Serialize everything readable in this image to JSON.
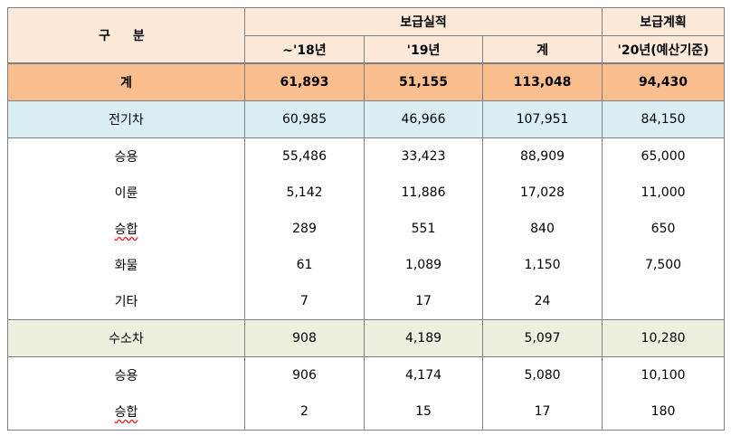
{
  "header": {
    "category": "구 분",
    "actual_group": "보급실적",
    "plan_group": "보급계획",
    "col_until18": "~'18년",
    "col_19": "'19년",
    "col_total": "계",
    "col_20plan": "'20년(예산기준)"
  },
  "rows": [
    {
      "label": "계",
      "v": [
        "61,893",
        "51,155",
        "113,048",
        "94,430"
      ]
    },
    {
      "label": "전기차",
      "v": [
        "60,985",
        "46,966",
        "107,951",
        "84,150"
      ]
    },
    {
      "label": "승용",
      "v": [
        "55,486",
        "33,423",
        "88,909",
        "65,000"
      ]
    },
    {
      "label": "이륜",
      "v": [
        "5,142",
        "11,886",
        "17,028",
        "11,000"
      ]
    },
    {
      "label": "승합",
      "v": [
        "289",
        "551",
        "840",
        "650"
      ]
    },
    {
      "label": "화물",
      "v": [
        "61",
        "1,089",
        "1,150",
        "7,500"
      ]
    },
    {
      "label": "기타",
      "v": [
        "7",
        "17",
        "24",
        ""
      ]
    },
    {
      "label": "수소차",
      "v": [
        "908",
        "4,189",
        "5,097",
        "10,280"
      ]
    },
    {
      "label": "승용",
      "v": [
        "906",
        "4,174",
        "5,080",
        "10,100"
      ]
    },
    {
      "label": "승합",
      "v": [
        "2",
        "15",
        "17",
        "180"
      ]
    }
  ]
}
